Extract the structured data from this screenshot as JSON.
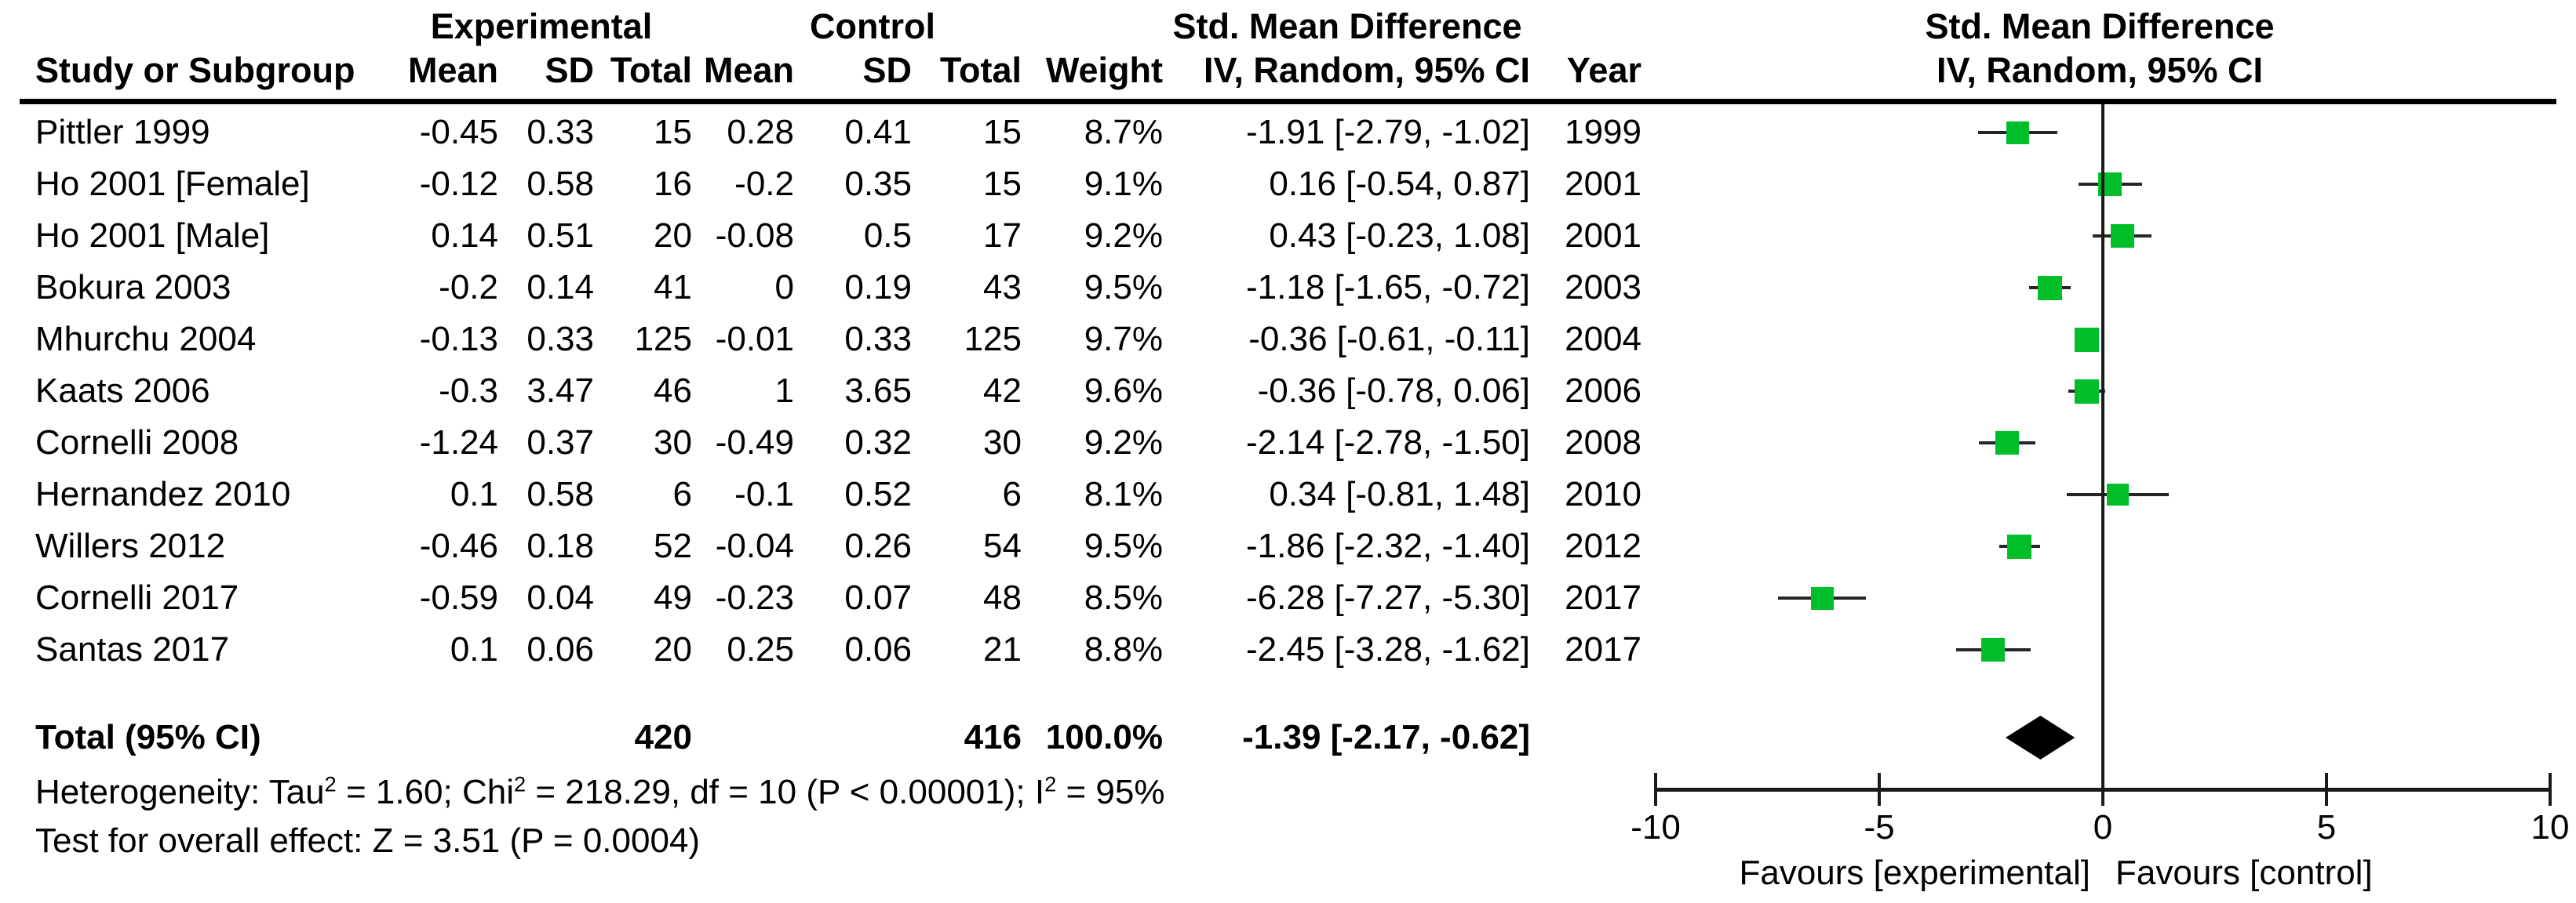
{
  "title_headers": {
    "experimental": "Experimental",
    "control": "Control",
    "smd_table": "Std. Mean Difference",
    "smd_plot": "Std. Mean Difference",
    "study": "Study or Subgroup",
    "mean1": "Mean",
    "sd1": "SD",
    "total1": "Total",
    "mean2": "Mean",
    "sd2": "SD",
    "total2": "Total",
    "weight": "Weight",
    "iv_ci": "IV, Random, 95% CI",
    "year": "Year",
    "iv_ci_plot": "IV, Random, 95% CI"
  },
  "footer": {
    "heterogeneity_parts": [
      {
        "t": "Heterogeneity: Tau"
      },
      {
        "sup": "2"
      },
      {
        "t": " = 1.60; Chi"
      },
      {
        "sup": "2"
      },
      {
        "t": " = 218.29, df = 10 (P < 0.00001); I"
      },
      {
        "sup": "2"
      },
      {
        "t": " = 95%"
      }
    ],
    "overall_effect": "Test for overall effect: Z = 3.51 (P = 0.0004)"
  },
  "axis": {
    "tick_labels": [
      "-10",
      "-5",
      "0",
      "5",
      "10"
    ],
    "tick_values": [
      -10,
      -5,
      0,
      5,
      10
    ],
    "favours_left": "Favours [experimental]",
    "favours_right": "Favours [control]"
  },
  "colors": {
    "marker": "#00BE29",
    "diamond": "#000000",
    "ci_line": "#262626",
    "text": "#000000"
  },
  "chart_data": {
    "type": "forest",
    "effect_measure": "Std. Mean Difference, IV, Random, 95% CI",
    "x_axis": {
      "min": -10,
      "max": 10,
      "ticks": [
        -10,
        -5,
        0,
        5,
        10
      ]
    },
    "studies": [
      {
        "name": "Pittler 1999",
        "e_mean": "-0.45",
        "e_sd": "0.33",
        "e_total": "15",
        "c_mean": "0.28",
        "c_sd": "0.41",
        "c_total": "15",
        "weight": "8.7%",
        "weight_val": 8.7,
        "ci_text": "-1.91 [-2.79, -1.02]",
        "year": "1999",
        "est": -1.91,
        "lo": -2.79,
        "hi": -1.02
      },
      {
        "name": "Ho 2001 [Female]",
        "e_mean": "-0.12",
        "e_sd": "0.58",
        "e_total": "16",
        "c_mean": "-0.2",
        "c_sd": "0.35",
        "c_total": "15",
        "weight": "9.1%",
        "weight_val": 9.1,
        "ci_text": "0.16 [-0.54, 0.87]",
        "year": "2001",
        "est": 0.16,
        "lo": -0.54,
        "hi": 0.87
      },
      {
        "name": "Ho 2001 [Male]",
        "e_mean": "0.14",
        "e_sd": "0.51",
        "e_total": "20",
        "c_mean": "-0.08",
        "c_sd": "0.5",
        "c_total": "17",
        "weight": "9.2%",
        "weight_val": 9.2,
        "ci_text": "0.43 [-0.23, 1.08]",
        "year": "2001",
        "est": 0.43,
        "lo": -0.23,
        "hi": 1.08
      },
      {
        "name": "Bokura 2003",
        "e_mean": "-0.2",
        "e_sd": "0.14",
        "e_total": "41",
        "c_mean": "0",
        "c_sd": "0.19",
        "c_total": "43",
        "weight": "9.5%",
        "weight_val": 9.5,
        "ci_text": "-1.18 [-1.65, -0.72]",
        "year": "2003",
        "est": -1.18,
        "lo": -1.65,
        "hi": -0.72
      },
      {
        "name": "Mhurchu 2004",
        "e_mean": "-0.13",
        "e_sd": "0.33",
        "e_total": "125",
        "c_mean": "-0.01",
        "c_sd": "0.33",
        "c_total": "125",
        "weight": "9.7%",
        "weight_val": 9.7,
        "ci_text": "-0.36 [-0.61, -0.11]",
        "year": "2004",
        "est": -0.36,
        "lo": -0.61,
        "hi": -0.11
      },
      {
        "name": "Kaats 2006",
        "e_mean": "-0.3",
        "e_sd": "3.47",
        "e_total": "46",
        "c_mean": "1",
        "c_sd": "3.65",
        "c_total": "42",
        "weight": "9.6%",
        "weight_val": 9.6,
        "ci_text": "-0.36 [-0.78, 0.06]",
        "year": "2006",
        "est": -0.36,
        "lo": -0.78,
        "hi": 0.06
      },
      {
        "name": "Cornelli 2008",
        "e_mean": "-1.24",
        "e_sd": "0.37",
        "e_total": "30",
        "c_mean": "-0.49",
        "c_sd": "0.32",
        "c_total": "30",
        "weight": "9.2%",
        "weight_val": 9.2,
        "ci_text": "-2.14 [-2.78, -1.50]",
        "year": "2008",
        "est": -2.14,
        "lo": -2.78,
        "hi": -1.5
      },
      {
        "name": "Hernandez 2010",
        "e_mean": "0.1",
        "e_sd": "0.58",
        "e_total": "6",
        "c_mean": "-0.1",
        "c_sd": "0.52",
        "c_total": "6",
        "weight": "8.1%",
        "weight_val": 8.1,
        "ci_text": "0.34 [-0.81, 1.48]",
        "year": "2010",
        "est": 0.34,
        "lo": -0.81,
        "hi": 1.48
      },
      {
        "name": "Willers 2012",
        "e_mean": "-0.46",
        "e_sd": "0.18",
        "e_total": "52",
        "c_mean": "-0.04",
        "c_sd": "0.26",
        "c_total": "54",
        "weight": "9.5%",
        "weight_val": 9.5,
        "ci_text": "-1.86 [-2.32, -1.40]",
        "year": "2012",
        "est": -1.86,
        "lo": -2.32,
        "hi": -1.4
      },
      {
        "name": "Cornelli 2017",
        "e_mean": "-0.59",
        "e_sd": "0.04",
        "e_total": "49",
        "c_mean": "-0.23",
        "c_sd": "0.07",
        "c_total": "48",
        "weight": "8.5%",
        "weight_val": 8.5,
        "ci_text": "-6.28 [-7.27, -5.30]",
        "year": "2017",
        "est": -6.28,
        "lo": -7.27,
        "hi": -5.3
      },
      {
        "name": "Santas 2017",
        "e_mean": "0.1",
        "e_sd": "0.06",
        "e_total": "20",
        "c_mean": "0.25",
        "c_sd": "0.06",
        "c_total": "21",
        "weight": "8.8%",
        "weight_val": 8.8,
        "ci_text": "-2.45 [-3.28, -1.62]",
        "year": "2017",
        "est": -2.45,
        "lo": -3.28,
        "hi": -1.62
      }
    ],
    "total": {
      "label": "Total (95% CI)",
      "e_total": "420",
      "c_total": "416",
      "weight": "100.0%",
      "ci_text": "-1.39 [-2.17, -0.62]",
      "est": -1.39,
      "lo": -2.17,
      "hi": -0.62
    }
  }
}
